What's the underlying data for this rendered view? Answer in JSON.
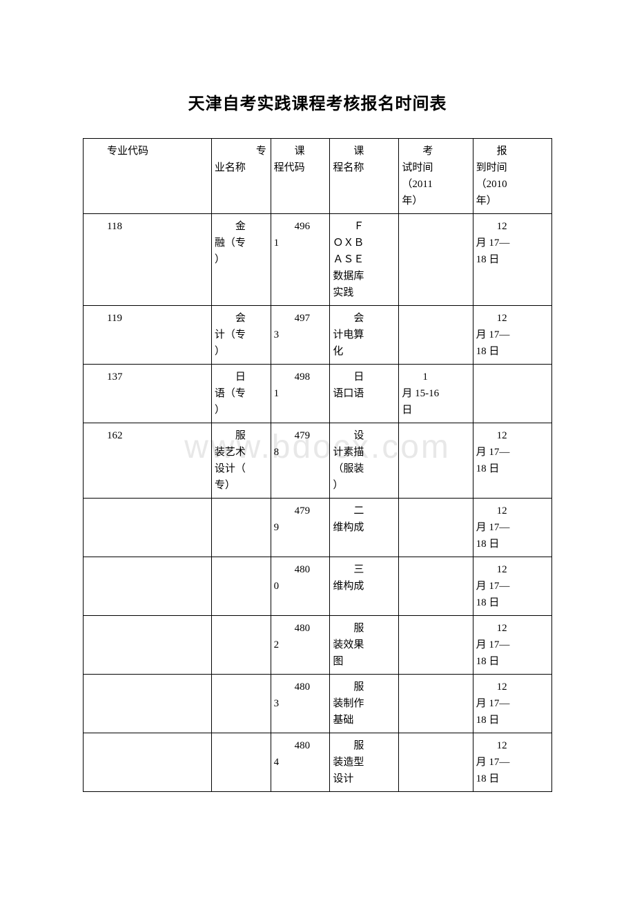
{
  "title": "天津自考实践课程考核报名时间表",
  "watermark": "www.bdocx.com",
  "headers": {
    "major_code": "专业代码",
    "major_name": "专业名称",
    "course_code": "课程代码",
    "course_name": "课程名称",
    "exam_time_l1": "考",
    "exam_time_l2": "试时间",
    "exam_time_l3": "（2011",
    "exam_time_l4": "年）",
    "report_time_l1": "报",
    "report_time_l2": "到时间",
    "report_time_l3": "（2010",
    "report_time_l4": "年）"
  },
  "rows": [
    {
      "major_code": "118",
      "major_name": "金融（专）",
      "course_code_p1": "496",
      "course_code_p2": "1",
      "course_name": "ＦＯＸＢＡＳＥ数据库实践",
      "exam_time": "",
      "report_time": "12月 17—18 日"
    },
    {
      "major_code": "119",
      "major_name": "会计（专）",
      "course_code_p1": "497",
      "course_code_p2": "3",
      "course_name": "会计电算化",
      "exam_time": "",
      "report_time": "12月 17—18 日"
    },
    {
      "major_code": "137",
      "major_name": "日语（专）",
      "course_code_p1": "498",
      "course_code_p2": "1",
      "course_name": "日语口语",
      "exam_time": "1月 15-16日",
      "report_time": ""
    },
    {
      "major_code": "162",
      "major_name": "服装艺术设计（专）",
      "course_code_p1": "479",
      "course_code_p2": "8",
      "course_name": "设计素描（服装）",
      "exam_time": "",
      "report_time": "12月 17—18 日"
    },
    {
      "major_code": "",
      "major_name": "",
      "course_code_p1": "479",
      "course_code_p2": "9",
      "course_name": "二维构成",
      "exam_time": "",
      "report_time": "12月 17—18 日"
    },
    {
      "major_code": "",
      "major_name": "",
      "course_code_p1": "480",
      "course_code_p2": "0",
      "course_name": "三维构成",
      "exam_time": "",
      "report_time": "12月 17—18 日"
    },
    {
      "major_code": "",
      "major_name": "",
      "course_code_p1": "480",
      "course_code_p2": "2",
      "course_name": "服装效果图",
      "exam_time": "",
      "report_time": "12月 17—18 日"
    },
    {
      "major_code": "",
      "major_name": "",
      "course_code_p1": "480",
      "course_code_p2": "3",
      "course_name": "服装制作基础",
      "exam_time": "",
      "report_time": "12月 17—18 日"
    },
    {
      "major_code": "",
      "major_name": "",
      "course_code_p1": "480",
      "course_code_p2": "4",
      "course_name": "服装造型设计",
      "exam_time": "",
      "report_time": "12月 17—18 日"
    }
  ]
}
